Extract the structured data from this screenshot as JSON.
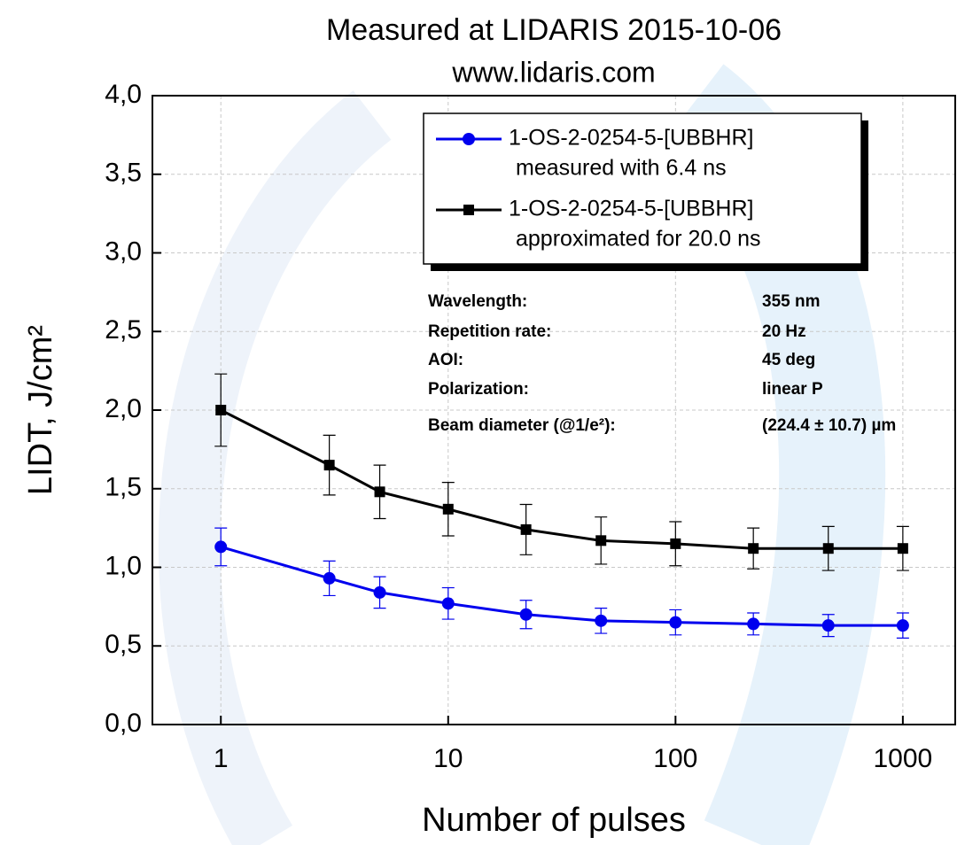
{
  "chart_data": {
    "type": "line",
    "title": "Measured at LIDARIS 2015-10-06",
    "subtitle": "www.lidaris.com",
    "x_label": "Number of pulses",
    "y_label": "LIDT, J/cm²",
    "x_scale": "log",
    "xlim": [
      0.5,
      1700
    ],
    "xticks": [
      1,
      10,
      100,
      1000
    ],
    "ylim": [
      0,
      4
    ],
    "yticks": [
      {
        "value": 0,
        "label": "0,0"
      },
      {
        "value": 0.5,
        "label": "0,5"
      },
      {
        "value": 1,
        "label": "1,0"
      },
      {
        "value": 1.5,
        "label": "1,5"
      },
      {
        "value": 2,
        "label": "2,0"
      },
      {
        "value": 2.5,
        "label": "2,5"
      },
      {
        "value": 3,
        "label": "3,0"
      },
      {
        "value": 3.5,
        "label": "3,5"
      },
      {
        "value": 4,
        "label": "4,0"
      }
    ],
    "grid": true,
    "legend": "upper right",
    "x": [
      1,
      3,
      5,
      10,
      22,
      47,
      100,
      220,
      470,
      1000
    ],
    "series": [
      {
        "name": "1-OS-2-0254-5-[UBBHR]",
        "description": "measured with 6.4 ns",
        "color": "#0000ee",
        "marker": "circle",
        "values": [
          1.13,
          0.93,
          0.84,
          0.77,
          0.7,
          0.66,
          0.65,
          0.64,
          0.63,
          0.63
        ],
        "errors": [
          0.12,
          0.11,
          0.1,
          0.1,
          0.09,
          0.08,
          0.08,
          0.07,
          0.07,
          0.08
        ]
      },
      {
        "name": "1-OS-2-0254-5-[UBBHR]",
        "description": "approximated for 20.0 ns",
        "color": "#000000",
        "marker": "square",
        "values": [
          2.0,
          1.65,
          1.48,
          1.37,
          1.24,
          1.17,
          1.15,
          1.12,
          1.12,
          1.12
        ],
        "errors": [
          0.23,
          0.19,
          0.17,
          0.17,
          0.16,
          0.15,
          0.14,
          0.13,
          0.14,
          0.14
        ]
      }
    ],
    "annotations": [
      {
        "label": "Wavelength:",
        "value": "355 nm"
      },
      {
        "label": "Repetition rate:",
        "value": "20 Hz"
      },
      {
        "label": "AOI:",
        "value": "45 deg"
      },
      {
        "label": "Polarization:",
        "value": "linear P"
      },
      {
        "label": "Beam diameter (@1/e²):",
        "value": "(224.4 ± 10.7) µm"
      }
    ]
  }
}
